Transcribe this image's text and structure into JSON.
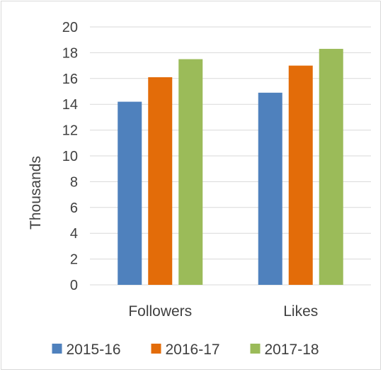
{
  "chart_data": {
    "type": "bar",
    "categories": [
      "Followers",
      "Likes"
    ],
    "series": [
      {
        "name": "2015-16",
        "color": "#4f81bd",
        "values": [
          14.2,
          14.9
        ]
      },
      {
        "name": "2016-17",
        "color": "#e36c09",
        "values": [
          16.1,
          17.0
        ]
      },
      {
        "name": "2017-18",
        "color": "#9bbb59",
        "values": [
          17.5,
          18.3
        ]
      }
    ],
    "title": "",
    "xlabel": "",
    "ylabel": "Thousands",
    "ylim": [
      0,
      20
    ],
    "yticks": [
      0,
      2,
      4,
      6,
      8,
      10,
      12,
      14,
      16,
      18,
      20
    ],
    "gridlines": true,
    "legend_position": "bottom"
  }
}
